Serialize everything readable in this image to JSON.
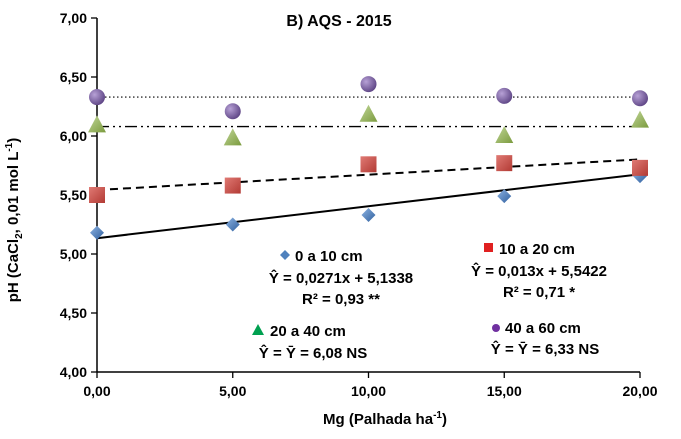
{
  "chart_data": {
    "type": "scatter",
    "title": "B) AQS - 2015",
    "xlabel_main": "Mg (Palhada ha",
    "xlabel_sup": "-1",
    "xlabel_end": ")",
    "ylabel_parts": {
      "a": "pH (CaCl",
      "sub": "2",
      "b": ", 0,01 mol L",
      "sup": "-1",
      "c": ")"
    },
    "xlim": [
      0,
      20
    ],
    "ylim": [
      4.0,
      7.0
    ],
    "x_ticks": [
      0,
      5,
      10,
      15,
      20
    ],
    "x_tick_labels": [
      "0,00",
      "5,00",
      "10,00",
      "15,00",
      "20,00"
    ],
    "y_ticks": [
      4.0,
      4.5,
      5.0,
      5.5,
      6.0,
      6.5,
      7.0
    ],
    "y_tick_labels": [
      "4,00",
      "4,50",
      "5,00",
      "5,50",
      "6,00",
      "6,50",
      "7,00"
    ],
    "grid": false,
    "series": [
      {
        "name": "0 a 10 cm",
        "marker": "diamond",
        "color": "#4f81bd",
        "x": [
          0,
          5,
          10,
          15,
          20
        ],
        "y": [
          5.18,
          5.25,
          5.33,
          5.49,
          5.66
        ],
        "fit": {
          "slope": 0.0271,
          "intercept": 5.1338,
          "line": "solid"
        },
        "equation": "Ŷ = 0,0271x + 5,1338",
        "r2": "R² = 0,93 **"
      },
      {
        "name": "10 a 20 cm",
        "marker": "square",
        "color": "#c0504d",
        "x": [
          0,
          5,
          10,
          15,
          20
        ],
        "y": [
          5.5,
          5.58,
          5.76,
          5.77,
          5.73
        ],
        "fit": {
          "slope": 0.013,
          "intercept": 5.5422,
          "line": "dashed"
        },
        "equation": "Ŷ = 0,013x + 5,5422",
        "r2": "R² = 0,71 *"
      },
      {
        "name": "20 a 40 cm",
        "marker": "triangle",
        "color": "#9bbb59",
        "x": [
          0,
          5,
          10,
          15,
          20
        ],
        "y": [
          6.09,
          5.98,
          6.18,
          6.0,
          6.13
        ],
        "fit": {
          "constant": 6.08,
          "line": "dashdot"
        },
        "equation": "Ŷ = Ȳ = 6,08 NS"
      },
      {
        "name": "40 a 60 cm",
        "marker": "circle",
        "color": "#8064a2",
        "x": [
          0,
          5,
          10,
          15,
          20
        ],
        "y": [
          6.33,
          6.21,
          6.44,
          6.34,
          6.32
        ],
        "fit": {
          "constant": 6.33,
          "line": "dotted"
        },
        "equation": "Ŷ = Ȳ = 6,33 NS"
      }
    ]
  }
}
